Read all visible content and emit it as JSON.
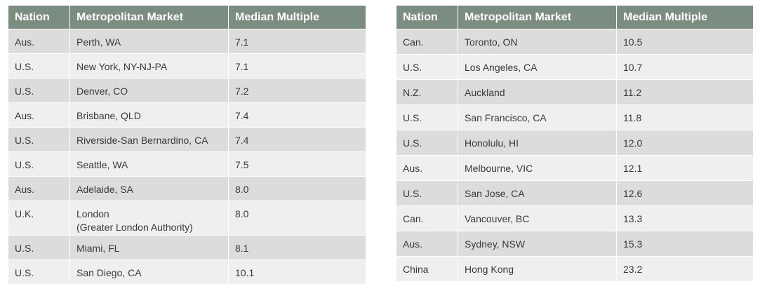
{
  "tables": [
    {
      "headers": [
        "Nation",
        "Metropolitan Market",
        "Median Multiple"
      ],
      "rows": [
        {
          "nation": "Aus.",
          "market": "Perth, WA",
          "market_line2": "",
          "multiple": "7.1"
        },
        {
          "nation": "U.S.",
          "market": "New York, NY-NJ-PA",
          "market_line2": "",
          "multiple": "7.1"
        },
        {
          "nation": "U.S.",
          "market": "Denver, CO",
          "market_line2": "",
          "multiple": "7.2"
        },
        {
          "nation": "Aus.",
          "market": "Brisbane, QLD",
          "market_line2": "",
          "multiple": "7.4"
        },
        {
          "nation": "U.S.",
          "market": "Riverside-San Bernardino, CA",
          "market_line2": "",
          "multiple": "7.4"
        },
        {
          "nation": "U.S.",
          "market": "Seattle, WA",
          "market_line2": "",
          "multiple": "7.5"
        },
        {
          "nation": "Aus.",
          "market": "Adelaide, SA",
          "market_line2": "",
          "multiple": "8.0"
        },
        {
          "nation": "U.K.",
          "market": "London",
          "market_line2": "(Greater London Authority)",
          "multiple": "8.0"
        },
        {
          "nation": "U.S.",
          "market": "Miami, FL",
          "market_line2": "",
          "multiple": "8.1"
        },
        {
          "nation": "U.S.",
          "market": "San Diego, CA",
          "market_line2": "",
          "multiple": "10.1"
        }
      ]
    },
    {
      "headers": [
        "Nation",
        "Metropolitan Market",
        "Median Multiple"
      ],
      "rows": [
        {
          "nation": "Can.",
          "market": "Toronto, ON",
          "multiple": "10.5"
        },
        {
          "nation": "U.S.",
          "market": "Los Angeles, CA",
          "multiple": "10.7"
        },
        {
          "nation": "N.Z.",
          "market": "Auckland",
          "multiple": "11.2"
        },
        {
          "nation": "U.S.",
          "market": "San Francisco, CA",
          "multiple": "11.8"
        },
        {
          "nation": "U.S.",
          "market": "Honolulu, HI",
          "multiple": "12.0"
        },
        {
          "nation": "Aus.",
          "market": "Melbourne, VIC",
          "multiple": "12.1"
        },
        {
          "nation": "U.S.",
          "market": "San Jose, CA",
          "multiple": "12.6"
        },
        {
          "nation": "Can.",
          "market": "Vancouver, BC",
          "multiple": "13.3"
        },
        {
          "nation": "Aus.",
          "market": "Sydney, NSW",
          "multiple": "15.3"
        },
        {
          "nation": "China",
          "market": "Hong Kong",
          "multiple": "23.2"
        }
      ]
    }
  ],
  "colors": {
    "header_bg": "#7b8d80",
    "header_text": "#ffffff",
    "row_odd": "#dcdcdc",
    "row_even": "#efefef",
    "body_text": "#3a3a3a"
  }
}
